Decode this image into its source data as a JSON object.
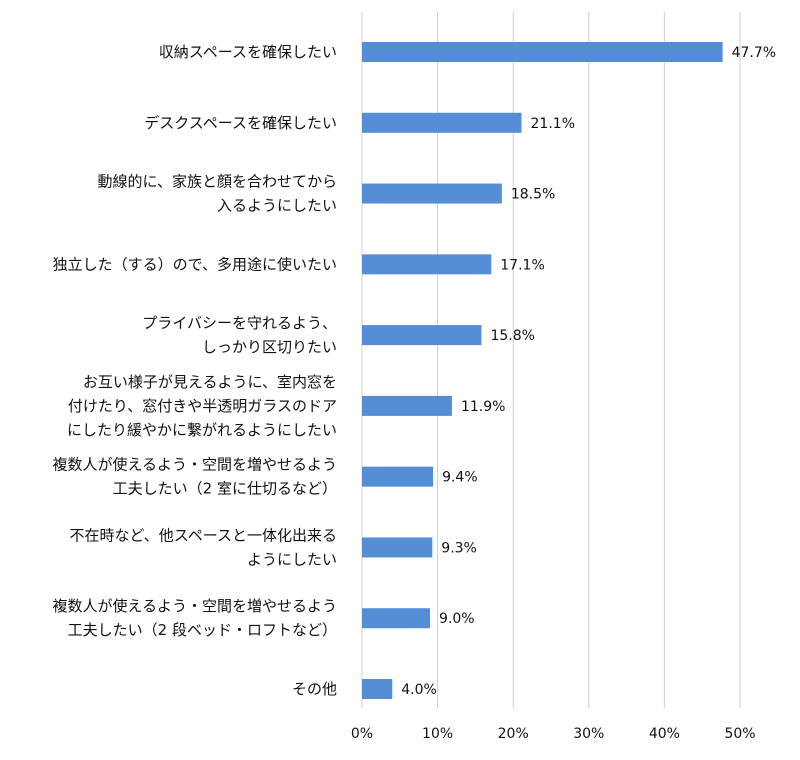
{
  "chart_data": {
    "type": "bar",
    "orientation": "horizontal",
    "categories": [
      [
        "収納スペースを確保したい"
      ],
      [
        "デスクスペースを確保したい"
      ],
      [
        "動線的に、家族と顔を合わせてから",
        "入るようにしたい"
      ],
      [
        "独立した（する）ので、多用途に使いたい"
      ],
      [
        "プライバシーを守れるよう、",
        "しっかり区切りたい"
      ],
      [
        "お互い様子が見えるように、室内窓を",
        "付けたり、窓付きや半透明ガラスのドア",
        "にしたり緩やかに繋がれるようにしたい"
      ],
      [
        "複数人が使えるよう・空間を増やせるよう",
        "工夫したい（2 室に仕切るなど）"
      ],
      [
        "不在時など、他スペースと一体化出来る",
        "ようにしたい"
      ],
      [
        "複数人が使えるよう・空間を増やせるよう",
        "工夫したい（2 段ベッド・ロフトなど）"
      ],
      [
        "その他"
      ]
    ],
    "values": [
      47.7,
      21.1,
      18.5,
      17.1,
      15.8,
      11.9,
      9.4,
      9.3,
      9.0,
      4.0
    ],
    "value_labels": [
      "47.7%",
      "21.1%",
      "18.5%",
      "17.1%",
      "15.8%",
      "11.9%",
      "9.4%",
      "9.3%",
      "9.0%",
      "4.0%"
    ],
    "x_ticks": [
      "0%",
      "10%",
      "20%",
      "30%",
      "40%",
      "50%"
    ],
    "xlim": [
      0,
      50
    ],
    "grid": true,
    "bar_color": "#558ed5",
    "grid_color": "#d0d0d0",
    "title": "",
    "xlabel": "",
    "ylabel": ""
  }
}
